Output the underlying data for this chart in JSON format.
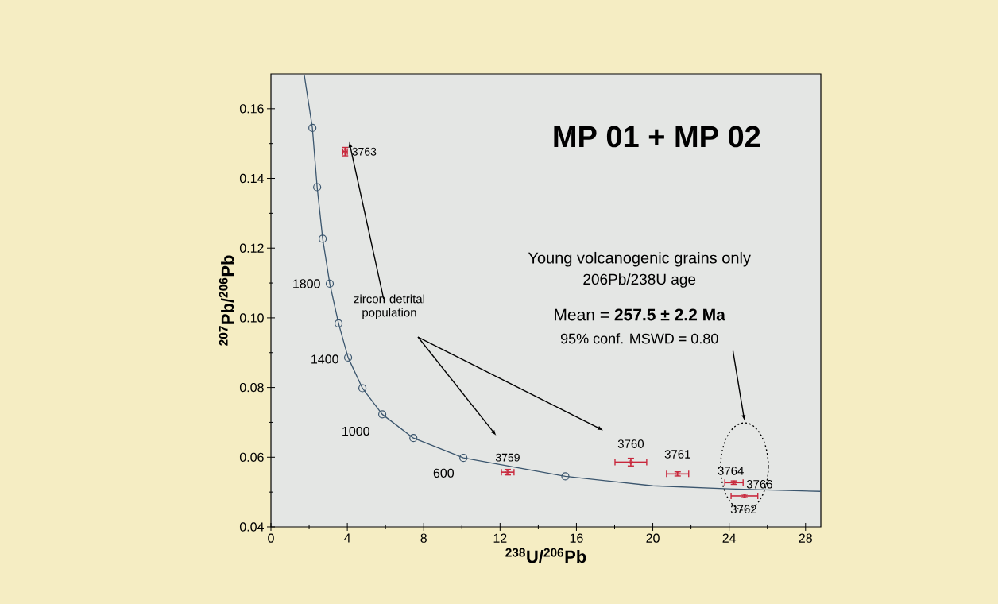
{
  "chart_data": {
    "type": "scatter",
    "title": "MP 01 + MP 02",
    "xlabel": "$^{238}$U/$^{206}$Pb",
    "ylabel": "$^{207}$Pb/$^{206}$Pb",
    "xlim": [
      0,
      28.8
    ],
    "ylim": [
      0.04,
      0.17
    ],
    "xticks": [
      0,
      4,
      8,
      12,
      16,
      20,
      24,
      28
    ],
    "yticks": [
      0.04,
      0.06,
      0.08,
      {
        "value": 0.1,
        "label": "0.10"
      },
      0.12,
      0.14,
      0.16
    ],
    "grid": false,
    "series": [
      {
        "type": "line",
        "color": "#3b566e",
        "marker": "none",
        "x": [
          1.75,
          2.17,
          2.42,
          2.71,
          3.08,
          3.54,
          4.04,
          4.79,
          5.83,
          7.46,
          10.08,
          15.42,
          20,
          24,
          28.8
        ],
        "values": [
          0.1695,
          0.1545,
          0.1375,
          0.1227,
          0.1098,
          0.0984,
          0.0886,
          0.0798,
          0.0723,
          0.0655,
          0.0598,
          0.0545,
          0.0518,
          0.0509,
          0.0502
        ]
      },
      {
        "color": "#3b566e",
        "marker": "circle",
        "x": [
          2.17,
          2.42,
          2.71,
          3.08,
          3.54,
          4.04,
          4.79,
          5.83,
          7.46,
          10.08,
          15.42
        ],
        "values": [
          0.1545,
          0.1375,
          0.1227,
          0.1098,
          0.0984,
          0.0886,
          0.0798,
          0.0723,
          0.0655,
          0.0598,
          0.0545
        ]
      },
      {
        "color": "#c8283c",
        "marker": "circle",
        "x": [
          3.88,
          12.4,
          18.85,
          21.3,
          24.25,
          24.8
        ],
        "values": [
          0.1477,
          0.0557,
          0.0586,
          0.0552,
          0.0527,
          0.0489
        ],
        "xerrors": [
          0.12,
          0.33,
          0.83,
          0.58,
          0.48,
          0.7
        ],
        "errors": [
          0.0012,
          0.0008,
          0.0011,
          0.0006,
          0.0005,
          0.0005
        ]
      }
    ],
    "annotations": [
      "zircon detrital population",
      "Young volcanogenic grains only",
      "206Pb/238U age",
      "Mean = **257.5 ± 2.2 Ma**",
      "95% conf.  MSWD = 0.80",
      {
        "text": "3763",
        "x": 3.88,
        "y": 0.1477
      },
      {
        "text": "3759",
        "x": 12.4,
        "y": 0.0557
      },
      {
        "text": "3760",
        "x": 18.85,
        "y": 0.0586
      },
      {
        "text": "3761",
        "x": 21.3,
        "y": 0.0552
      },
      {
        "text": "3764",
        "x": 24.25,
        "y": 0.0527
      },
      {
        "text": "3766",
        "x": 24.25,
        "y": 0.0527
      },
      {
        "text": "3762",
        "x": 24.8,
        "y": 0.0489
      },
      {
        "text": "1800",
        "x": 3.08,
        "y": 0.1098
      },
      {
        "text": "1400",
        "x": 4.04,
        "y": 0.0886
      },
      {
        "text": "1000",
        "x": 5.83,
        "y": 0.0723
      },
      {
        "text": "600",
        "x": 10.08,
        "y": 0.0598
      }
    ]
  }
}
